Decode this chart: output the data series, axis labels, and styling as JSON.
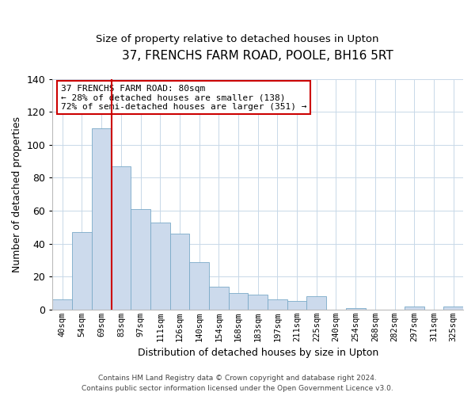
{
  "title": "37, FRENCHS FARM ROAD, POOLE, BH16 5RT",
  "subtitle": "Size of property relative to detached houses in Upton",
  "xlabel": "Distribution of detached houses by size in Upton",
  "ylabel": "Number of detached properties",
  "bin_labels": [
    "40sqm",
    "54sqm",
    "69sqm",
    "83sqm",
    "97sqm",
    "111sqm",
    "126sqm",
    "140sqm",
    "154sqm",
    "168sqm",
    "183sqm",
    "197sqm",
    "211sqm",
    "225sqm",
    "240sqm",
    "254sqm",
    "268sqm",
    "282sqm",
    "297sqm",
    "311sqm",
    "325sqm"
  ],
  "bar_values": [
    6,
    47,
    110,
    87,
    61,
    53,
    46,
    29,
    14,
    10,
    9,
    6,
    5,
    8,
    0,
    1,
    0,
    0,
    2,
    0,
    2
  ],
  "bar_color": "#ccdaec",
  "bar_edge_color": "#7aaac8",
  "vline_x_idx": 2,
  "vline_color": "#cc0000",
  "annotation_line1": "37 FRENCHS FARM ROAD: 80sqm",
  "annotation_line2": "← 28% of detached houses are smaller (138)",
  "annotation_line3": "72% of semi-detached houses are larger (351) →",
  "ylim": [
    0,
    140
  ],
  "yticks": [
    0,
    20,
    40,
    60,
    80,
    100,
    120,
    140
  ],
  "footer_line1": "Contains HM Land Registry data © Crown copyright and database right 2024.",
  "footer_line2": "Contains public sector information licensed under the Open Government Licence v3.0.",
  "background_color": "#ffffff",
  "grid_color": "#c8d8e8",
  "title_fontsize": 11,
  "subtitle_fontsize": 9.5
}
